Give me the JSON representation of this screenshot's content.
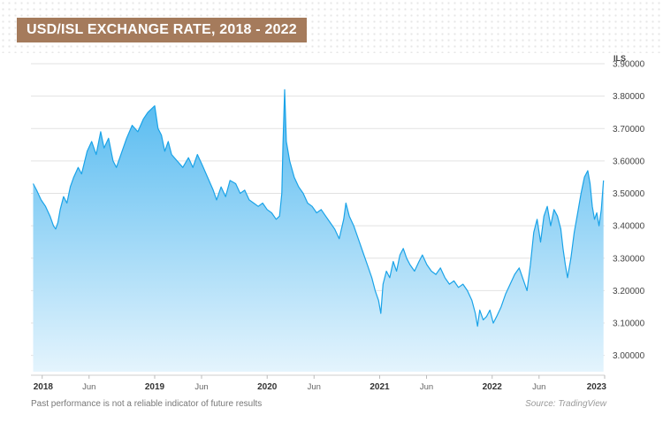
{
  "header": {
    "title": "USD/ISL EXCHANGE RATE, 2018 - 2022"
  },
  "footer": {
    "disclaimer": "Past performance is not a reliable indicator of future results",
    "source": "Source: TradingView"
  },
  "colors": {
    "title_bg": "#a57b5c",
    "line": "#1aa3e8",
    "area_top": "#52b9f0",
    "area_bottom": "#e4f4fd",
    "grid": "#e2e2e2"
  },
  "chart_data": {
    "type": "area",
    "title": "USD/ISL EXCHANGE RATE, 2018 - 2022",
    "ylabel": "ILS",
    "xlabel": "",
    "ylim": [
      2.95,
      3.9
    ],
    "y_ticks": [
      "3.90000",
      "3.80000",
      "3.70000",
      "3.60000",
      "3.50000",
      "3.40000",
      "3.30000",
      "3.20000",
      "3.10000",
      "3.00000"
    ],
    "y_tick_values": [
      3.9,
      3.8,
      3.7,
      3.6,
      3.5,
      3.4,
      3.3,
      3.2,
      3.1,
      3.0
    ],
    "x_ticks": [
      {
        "label": "2018",
        "t": 2018.0,
        "bold": true
      },
      {
        "label": "Jun",
        "t": 2018.4167,
        "bold": false
      },
      {
        "label": "2019",
        "t": 2019.0,
        "bold": true
      },
      {
        "label": "Jun",
        "t": 2019.4167,
        "bold": false
      },
      {
        "label": "2020",
        "t": 2020.0,
        "bold": true
      },
      {
        "label": "Jun",
        "t": 2020.4167,
        "bold": false
      },
      {
        "label": "2021",
        "t": 2021.0,
        "bold": true
      },
      {
        "label": "Jun",
        "t": 2021.4167,
        "bold": false
      },
      {
        "label": "2022",
        "t": 2022.0,
        "bold": true
      },
      {
        "label": "Jun",
        "t": 2022.4167,
        "bold": false
      },
      {
        "label": "2023",
        "t": 2023.0,
        "bold": true
      }
    ],
    "xlim": [
      2017.9,
      2023.0
    ],
    "grid": true,
    "legend": "none",
    "series": [
      {
        "points": [
          [
            2017.92,
            3.53
          ],
          [
            2017.95,
            3.51
          ],
          [
            2017.99,
            3.48
          ],
          [
            2018.03,
            3.46
          ],
          [
            2018.07,
            3.43
          ],
          [
            2018.1,
            3.4
          ],
          [
            2018.12,
            3.39
          ],
          [
            2018.14,
            3.41
          ],
          [
            2018.16,
            3.45
          ],
          [
            2018.19,
            3.49
          ],
          [
            2018.22,
            3.47
          ],
          [
            2018.25,
            3.52
          ],
          [
            2018.28,
            3.55
          ],
          [
            2018.32,
            3.58
          ],
          [
            2018.35,
            3.56
          ],
          [
            2018.4,
            3.63
          ],
          [
            2018.44,
            3.66
          ],
          [
            2018.48,
            3.62
          ],
          [
            2018.52,
            3.69
          ],
          [
            2018.55,
            3.64
          ],
          [
            2018.59,
            3.67
          ],
          [
            2018.63,
            3.6
          ],
          [
            2018.66,
            3.58
          ],
          [
            2018.7,
            3.62
          ],
          [
            2018.75,
            3.67
          ],
          [
            2018.8,
            3.71
          ],
          [
            2018.85,
            3.69
          ],
          [
            2018.9,
            3.73
          ],
          [
            2018.94,
            3.75
          ],
          [
            2019.0,
            3.77
          ],
          [
            2019.03,
            3.7
          ],
          [
            2019.06,
            3.68
          ],
          [
            2019.09,
            3.63
          ],
          [
            2019.12,
            3.66
          ],
          [
            2019.15,
            3.62
          ],
          [
            2019.2,
            3.6
          ],
          [
            2019.25,
            3.58
          ],
          [
            2019.3,
            3.61
          ],
          [
            2019.34,
            3.58
          ],
          [
            2019.38,
            3.62
          ],
          [
            2019.42,
            3.59
          ],
          [
            2019.47,
            3.55
          ],
          [
            2019.52,
            3.51
          ],
          [
            2019.55,
            3.48
          ],
          [
            2019.59,
            3.52
          ],
          [
            2019.63,
            3.49
          ],
          [
            2019.67,
            3.54
          ],
          [
            2019.72,
            3.53
          ],
          [
            2019.76,
            3.5
          ],
          [
            2019.8,
            3.51
          ],
          [
            2019.84,
            3.48
          ],
          [
            2019.88,
            3.47
          ],
          [
            2019.92,
            3.46
          ],
          [
            2019.96,
            3.47
          ],
          [
            2020.0,
            3.45
          ],
          [
            2020.04,
            3.44
          ],
          [
            2020.08,
            3.42
          ],
          [
            2020.11,
            3.43
          ],
          [
            2020.13,
            3.5
          ],
          [
            2020.14,
            3.65
          ],
          [
            2020.155,
            3.82
          ],
          [
            2020.17,
            3.66
          ],
          [
            2020.2,
            3.6
          ],
          [
            2020.24,
            3.55
          ],
          [
            2020.28,
            3.52
          ],
          [
            2020.32,
            3.5
          ],
          [
            2020.36,
            3.47
          ],
          [
            2020.4,
            3.46
          ],
          [
            2020.44,
            3.44
          ],
          [
            2020.48,
            3.45
          ],
          [
            2020.52,
            3.43
          ],
          [
            2020.56,
            3.41
          ],
          [
            2020.6,
            3.39
          ],
          [
            2020.64,
            3.36
          ],
          [
            2020.68,
            3.42
          ],
          [
            2020.7,
            3.47
          ],
          [
            2020.73,
            3.43
          ],
          [
            2020.77,
            3.4
          ],
          [
            2020.81,
            3.36
          ],
          [
            2020.85,
            3.32
          ],
          [
            2020.89,
            3.28
          ],
          [
            2020.93,
            3.24
          ],
          [
            2020.96,
            3.2
          ],
          [
            2020.99,
            3.17
          ],
          [
            2021.01,
            3.13
          ],
          [
            2021.03,
            3.22
          ],
          [
            2021.06,
            3.26
          ],
          [
            2021.09,
            3.24
          ],
          [
            2021.12,
            3.29
          ],
          [
            2021.15,
            3.26
          ],
          [
            2021.18,
            3.31
          ],
          [
            2021.21,
            3.33
          ],
          [
            2021.24,
            3.3
          ],
          [
            2021.27,
            3.28
          ],
          [
            2021.31,
            3.26
          ],
          [
            2021.35,
            3.29
          ],
          [
            2021.38,
            3.31
          ],
          [
            2021.42,
            3.28
          ],
          [
            2021.46,
            3.26
          ],
          [
            2021.5,
            3.25
          ],
          [
            2021.54,
            3.27
          ],
          [
            2021.58,
            3.24
          ],
          [
            2021.62,
            3.22
          ],
          [
            2021.66,
            3.23
          ],
          [
            2021.7,
            3.21
          ],
          [
            2021.74,
            3.22
          ],
          [
            2021.78,
            3.2
          ],
          [
            2021.82,
            3.17
          ],
          [
            2021.85,
            3.13
          ],
          [
            2021.87,
            3.09
          ],
          [
            2021.89,
            3.14
          ],
          [
            2021.92,
            3.11
          ],
          [
            2021.95,
            3.12
          ],
          [
            2021.98,
            3.14
          ],
          [
            2022.01,
            3.1
          ],
          [
            2022.04,
            3.12
          ],
          [
            2022.08,
            3.15
          ],
          [
            2022.12,
            3.19
          ],
          [
            2022.16,
            3.22
          ],
          [
            2022.2,
            3.25
          ],
          [
            2022.24,
            3.27
          ],
          [
            2022.28,
            3.23
          ],
          [
            2022.31,
            3.2
          ],
          [
            2022.34,
            3.28
          ],
          [
            2022.37,
            3.38
          ],
          [
            2022.4,
            3.42
          ],
          [
            2022.43,
            3.35
          ],
          [
            2022.46,
            3.43
          ],
          [
            2022.49,
            3.46
          ],
          [
            2022.52,
            3.4
          ],
          [
            2022.55,
            3.45
          ],
          [
            2022.58,
            3.43
          ],
          [
            2022.61,
            3.39
          ],
          [
            2022.63,
            3.33
          ],
          [
            2022.65,
            3.28
          ],
          [
            2022.67,
            3.24
          ],
          [
            2022.7,
            3.3
          ],
          [
            2022.73,
            3.38
          ],
          [
            2022.76,
            3.44
          ],
          [
            2022.79,
            3.5
          ],
          [
            2022.82,
            3.55
          ],
          [
            2022.85,
            3.57
          ],
          [
            2022.87,
            3.53
          ],
          [
            2022.89,
            3.46
          ],
          [
            2022.91,
            3.42
          ],
          [
            2022.93,
            3.44
          ],
          [
            2022.95,
            3.4
          ],
          [
            2022.97,
            3.45
          ],
          [
            2022.99,
            3.54
          ]
        ]
      }
    ]
  }
}
